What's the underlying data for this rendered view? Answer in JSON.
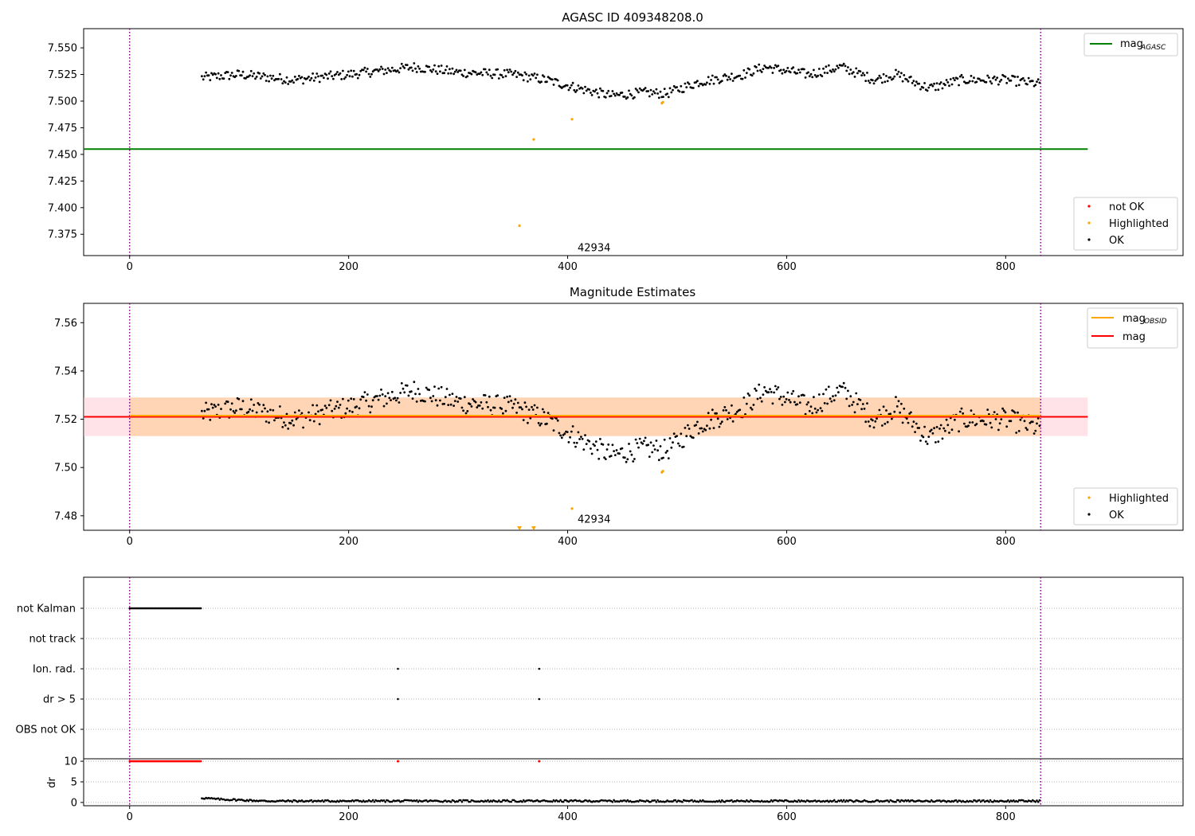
{
  "chart_data": [
    {
      "type": "scatter",
      "title": "AGASC ID 409348208.0",
      "xlim": [
        -42,
        962
      ],
      "ylim": [
        7.355,
        7.568
      ],
      "xticks": [
        "0",
        "200",
        "400",
        "600",
        "800"
      ],
      "yticks": [
        "7.375",
        "7.400",
        "7.425",
        "7.450",
        "7.475",
        "7.500",
        "7.525",
        "7.550"
      ],
      "grid": false,
      "hlines": [
        {
          "name": "mag_AGASC",
          "y": 7.455,
          "x_range": [
            -42,
            875
          ],
          "color": "#008000"
        }
      ],
      "vlines": [
        0,
        832
      ],
      "annotation": {
        "text": "42934",
        "x": 404,
        "y": 7.362
      },
      "legend_lines": [
        {
          "label": "mag",
          "subscript": "AGASC",
          "color": "#008000"
        }
      ],
      "legend_points": [
        {
          "label": "not OK",
          "color": "#ff0000"
        },
        {
          "label": "Highlighted",
          "color": "#ffa500"
        },
        {
          "label": "OK",
          "color": "#000000"
        }
      ],
      "ok_trend": [
        [
          66,
          7.522
        ],
        [
          100,
          7.525
        ],
        [
          150,
          7.52
        ],
        [
          200,
          7.525
        ],
        [
          260,
          7.532
        ],
        [
          300,
          7.527
        ],
        [
          350,
          7.525
        ],
        [
          380,
          7.52
        ],
        [
          410,
          7.512
        ],
        [
          440,
          7.505
        ],
        [
          470,
          7.508
        ],
        [
          490,
          7.507
        ],
        [
          520,
          7.518
        ],
        [
          560,
          7.525
        ],
        [
          580,
          7.532
        ],
        [
          620,
          7.525
        ],
        [
          650,
          7.532
        ],
        [
          680,
          7.52
        ],
        [
          700,
          7.525
        ],
        [
          730,
          7.512
        ],
        [
          760,
          7.52
        ],
        [
          800,
          7.52
        ],
        [
          832,
          7.516
        ]
      ],
      "ok_noise": 0.0045,
      "highlighted": [
        [
          356,
          7.383
        ],
        [
          369,
          7.464
        ],
        [
          404,
          7.483
        ],
        [
          486,
          7.498
        ],
        [
          487,
          7.499
        ]
      ]
    },
    {
      "type": "scatter",
      "title": "Magnitude Estimates",
      "xlim": [
        -42,
        962
      ],
      "ylim": [
        7.474,
        7.568
      ],
      "xticks": [
        "0",
        "200",
        "400",
        "600",
        "800"
      ],
      "yticks": [
        "7.48",
        "7.50",
        "7.52",
        "7.54",
        "7.56"
      ],
      "grid": false,
      "bands": [
        {
          "y0": 7.513,
          "y1": 7.529,
          "x_range": [
            -42,
            875
          ],
          "color": "#ffc0cb",
          "opacity": 0.45
        },
        {
          "y0": 7.513,
          "y1": 7.529,
          "x_range": [
            0,
            832
          ],
          "color": "#ffa500",
          "opacity": 0.22
        }
      ],
      "hlines": [
        {
          "name": "mag_OBSID",
          "y": 7.5215,
          "x_range": [
            0,
            832
          ],
          "color": "#ffa500"
        },
        {
          "name": "mag",
          "y": 7.521,
          "x_range": [
            -42,
            875
          ],
          "color": "#ff0000"
        }
      ],
      "vlines": [
        0,
        832
      ],
      "annotation": {
        "text": "42934",
        "x": 404,
        "y": 7.4785
      },
      "legend_lines": [
        {
          "label": "mag",
          "subscript": "OBSID",
          "color": "#ffa500"
        },
        {
          "label": "mag",
          "subscript": "",
          "color": "#ff0000"
        }
      ],
      "legend_points": [
        {
          "label": "Highlighted",
          "color": "#ffa500"
        },
        {
          "label": "OK",
          "color": "#000000"
        }
      ],
      "highlighted": [
        [
          404,
          7.483
        ],
        [
          486,
          7.498
        ],
        [
          487,
          7.4985
        ]
      ],
      "highlighted_offscale": [
        356,
        369
      ]
    },
    {
      "type": "scatter",
      "title": "",
      "xlim": [
        -42,
        962
      ],
      "xticks": [
        "0",
        "200",
        "400",
        "600",
        "800"
      ],
      "categories": [
        "not Kalman",
        "not track",
        "Ion. rad.",
        "dr > 5",
        "OBS not OK"
      ],
      "flags": {
        "not Kalman": {
          "x_range": [
            0,
            65
          ],
          "step": 1
        },
        "not track": [],
        "Ion. rad.": [
          245,
          374
        ],
        "dr > 5": [
          245,
          374
        ],
        "OBS not OK": []
      },
      "vlines": [
        0,
        832
      ]
    },
    {
      "type": "scatter",
      "title": "",
      "ylabel": "dr",
      "xlim": [
        -42,
        962
      ],
      "ylim": [
        -0.8,
        10.6
      ],
      "xticks": [
        "0",
        "200",
        "400",
        "600",
        "800"
      ],
      "yticks": [
        "0",
        "5",
        "10"
      ],
      "capped": {
        "value": 10,
        "x_range": [
          0,
          65
        ],
        "extra_x": [
          245,
          374
        ],
        "color": "#ff0000"
      },
      "dr_range": [
        66,
        832
      ],
      "dr_typical": 0.35,
      "dr_early": [
        [
          66,
          1.1
        ],
        [
          80,
          0.8
        ],
        [
          120,
          0.4
        ]
      ],
      "vlines": [
        0,
        832
      ]
    }
  ]
}
